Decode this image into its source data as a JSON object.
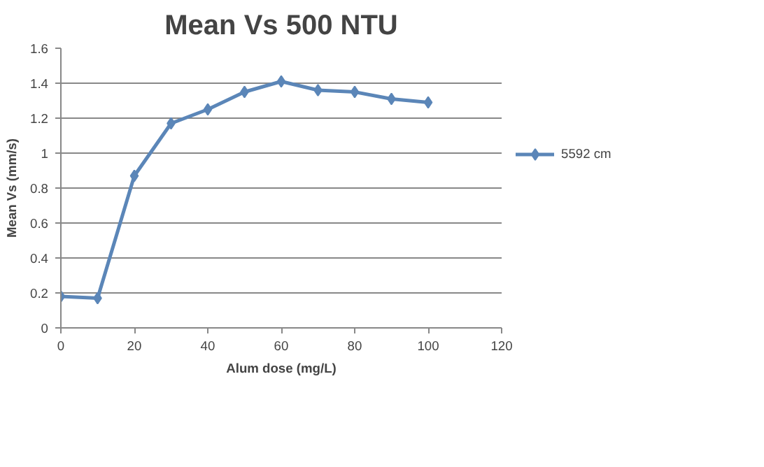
{
  "chart_data": {
    "type": "line",
    "title": "Mean Vs 500 NTU",
    "xlabel": "Alum dose (mg/L)",
    "ylabel": "Mean Vs (mm/s)",
    "x": [
      0,
      10,
      20,
      30,
      40,
      50,
      60,
      70,
      80,
      90,
      100
    ],
    "series": [
      {
        "name": "5592 cm",
        "color": "#5b86b8",
        "values": [
          0.18,
          0.17,
          0.87,
          1.17,
          1.25,
          1.35,
          1.41,
          1.36,
          1.35,
          1.31,
          1.29
        ]
      }
    ],
    "xlim": [
      0,
      120
    ],
    "xticks": [
      0,
      20,
      40,
      60,
      80,
      100,
      120
    ],
    "ylim": [
      0,
      1.6
    ],
    "yticks": [
      0,
      0.2,
      0.4,
      0.6,
      0.8,
      1,
      1.2,
      1.4,
      1.6
    ],
    "grid": "y",
    "legend": "right",
    "marker": "diamond",
    "line_style": "solid"
  }
}
